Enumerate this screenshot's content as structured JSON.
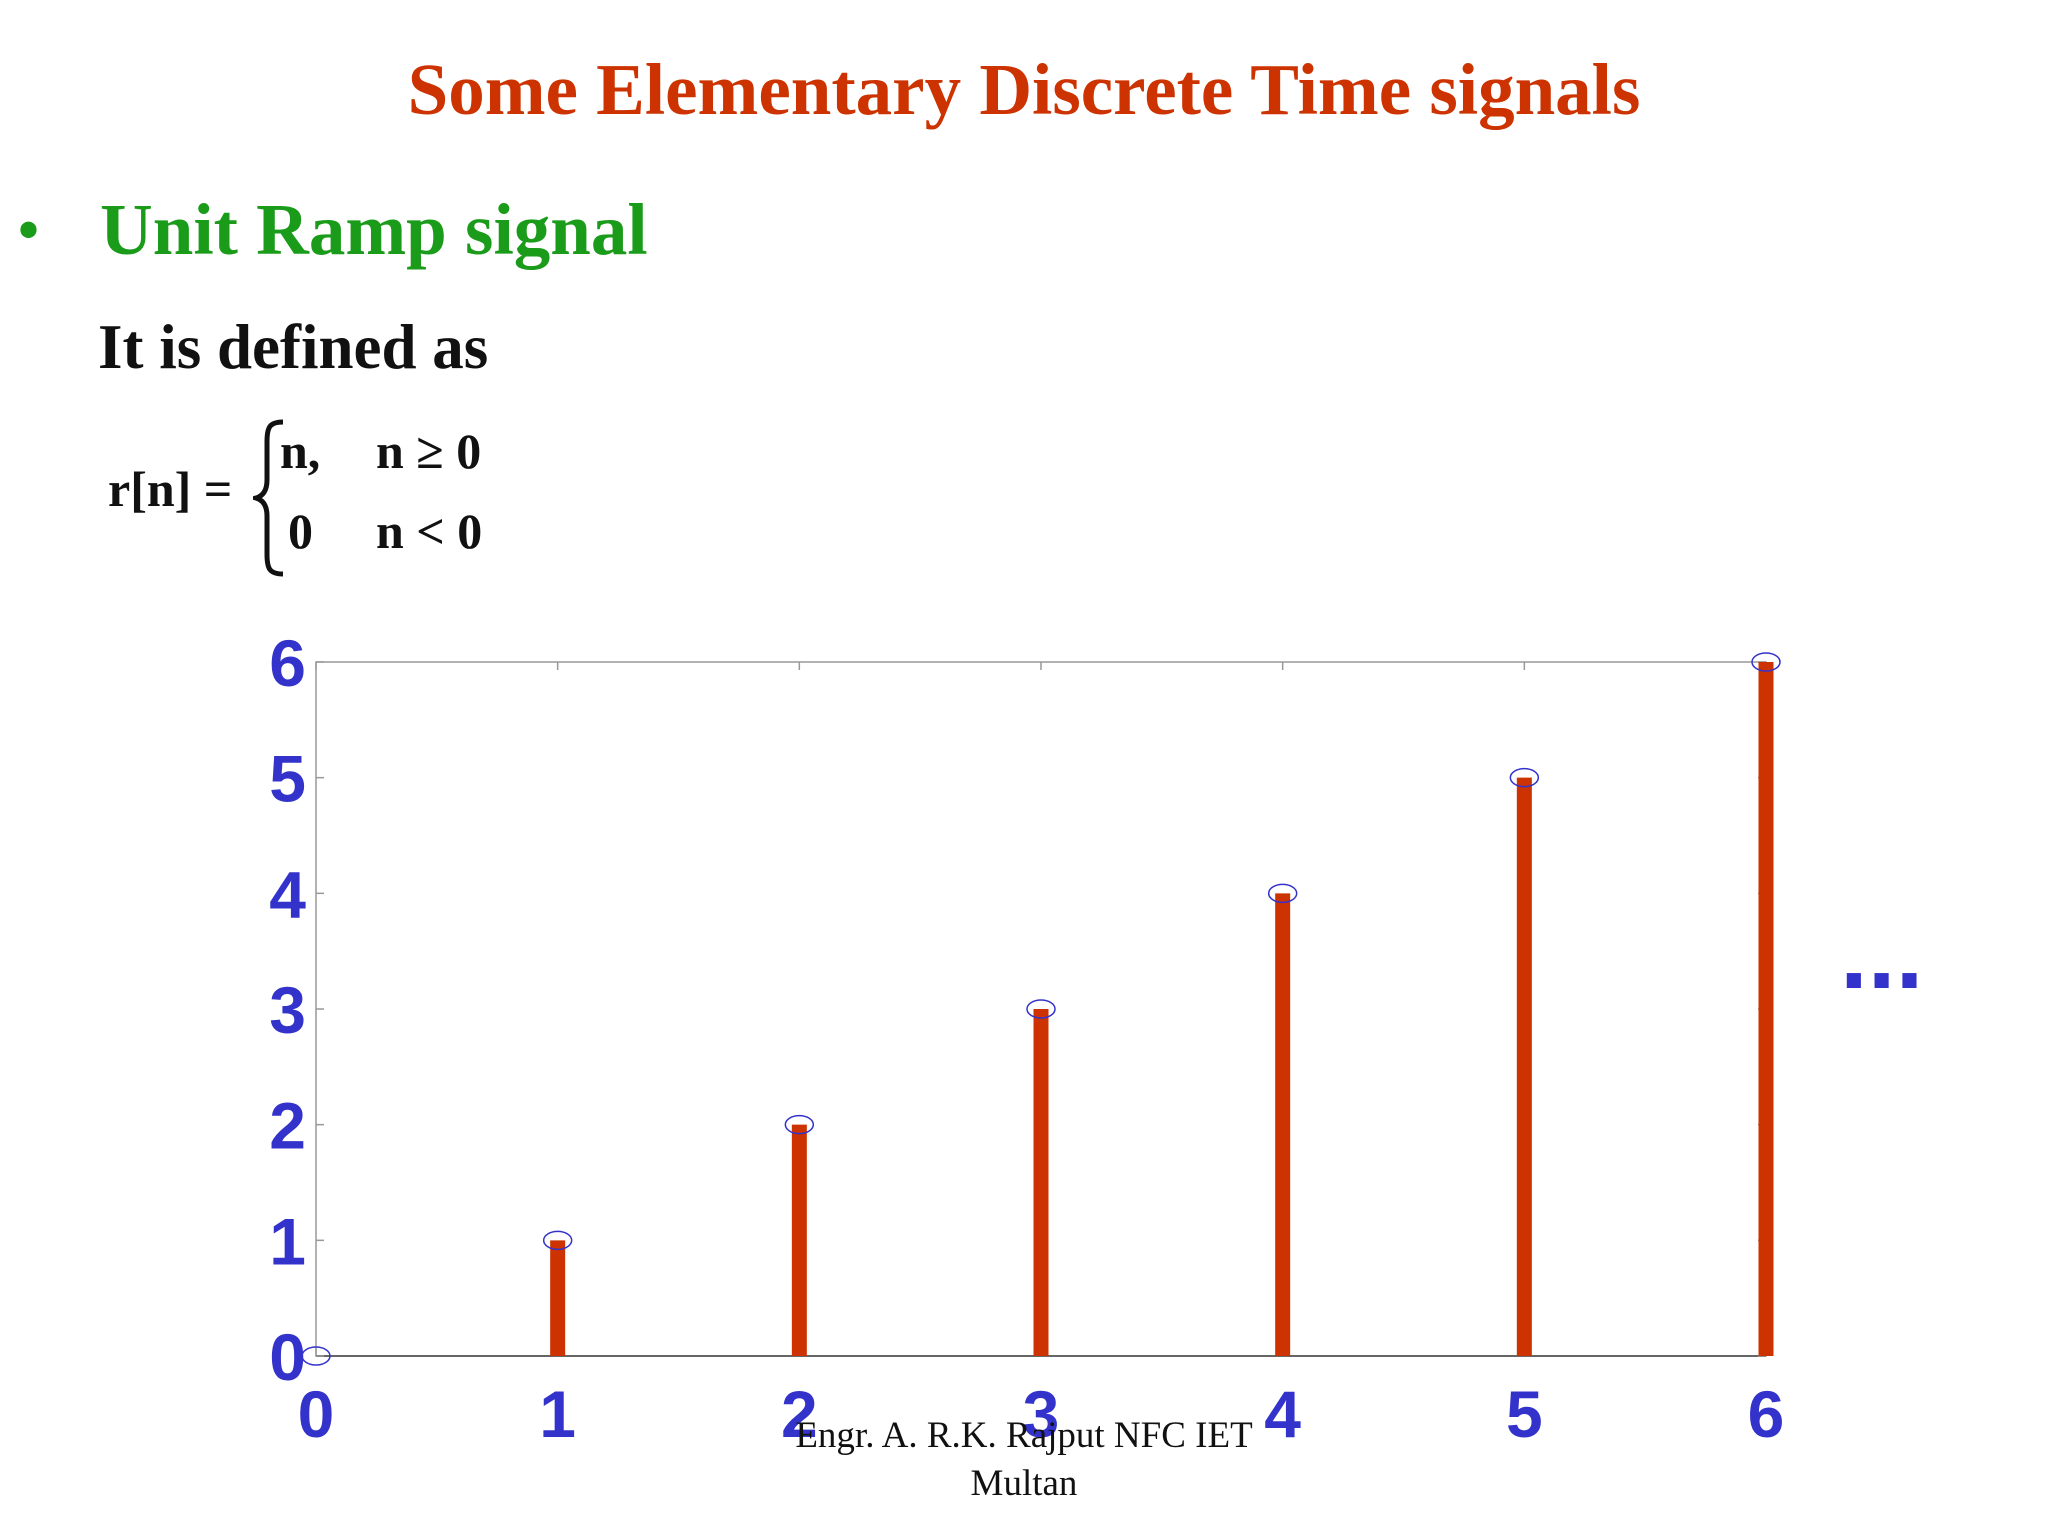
{
  "slide": {
    "title": "Some Elementary Discrete Time signals",
    "bullet": {
      "symbol": "•",
      "text": "Unit Ramp signal"
    },
    "intro": "It is defined as",
    "formula": {
      "lhs": "r[n] =",
      "cases": [
        {
          "value": "n,",
          "condition": "n ≥ 0"
        },
        {
          "value": "0",
          "condition": "n < 0"
        }
      ]
    },
    "continuation": "...",
    "footer": {
      "line1": "Engr. A. R.K. Rajput NFC IET",
      "line2": "Multan"
    }
  },
  "colors": {
    "title": "#cc3300",
    "bullet": "#1a9c1a",
    "stem": "#cc3300",
    "axis_labels": "#3333cc",
    "markers": "#3333cc"
  },
  "chart_data": {
    "type": "stem",
    "x": [
      0,
      1,
      2,
      3,
      4,
      5,
      6
    ],
    "y": [
      0,
      1,
      2,
      3,
      4,
      5,
      6
    ],
    "xlim": [
      0,
      6
    ],
    "ylim": [
      0,
      6
    ],
    "xticks": [
      "0",
      "1",
      "2",
      "3",
      "4",
      "5",
      "6"
    ],
    "yticks": [
      "0",
      "1",
      "2",
      "3",
      "4",
      "5",
      "6"
    ],
    "marker": "open circle",
    "grid": false
  }
}
